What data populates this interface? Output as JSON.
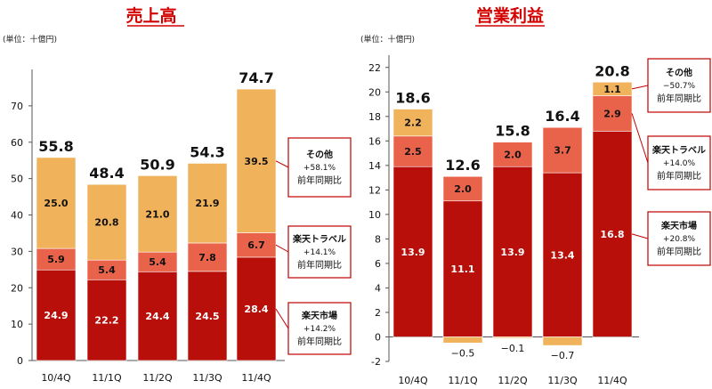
{
  "colors": {
    "ichiba": "#b80f0a",
    "travel": "#e8634a",
    "other": "#f0b35b",
    "title": "#d40000",
    "box_border": "#c00000"
  },
  "chart_data": [
    {
      "type": "bar",
      "stacked": true,
      "title": "売上高",
      "unit": "(単位：十億円)",
      "categories": [
        "10/4Q",
        "11/1Q",
        "11/2Q",
        "11/3Q",
        "11/4Q"
      ],
      "ylim": [
        0,
        80
      ],
      "yticks": [
        0,
        10,
        20,
        30,
        40,
        50,
        60,
        70
      ],
      "grid": false,
      "totals": [
        "55.8",
        "48.4",
        "50.9",
        "54.3",
        "74.7"
      ],
      "series": [
        {
          "key": "ichiba",
          "values": [
            24.9,
            22.2,
            24.4,
            24.5,
            28.4
          ],
          "labels": [
            "24.9",
            "22.2",
            "24.4",
            "24.5",
            "28.4"
          ]
        },
        {
          "key": "travel",
          "values": [
            5.9,
            5.4,
            5.4,
            7.8,
            6.7
          ],
          "labels": [
            "5.9",
            "5.4",
            "5.4",
            "7.8",
            "6.7"
          ]
        },
        {
          "key": "other",
          "values": [
            25.0,
            20.8,
            21.0,
            21.9,
            39.5
          ],
          "labels": [
            "25.0",
            "20.8",
            "21.0",
            "21.9",
            "39.5"
          ]
        }
      ],
      "annotations": [
        {
          "series": "other",
          "name": "その他",
          "change": "+58.1%",
          "sub": "前年同期比"
        },
        {
          "series": "travel",
          "name": "楽天トラベル",
          "change": "+14.1%",
          "sub": "前年同期比"
        },
        {
          "series": "ichiba",
          "name": "楽天市場",
          "change": "+14.2%",
          "sub": "前年同期比"
        }
      ]
    },
    {
      "type": "bar",
      "stacked": true,
      "title": "営業利益",
      "unit": "(単位：十億円)",
      "categories": [
        "10/4Q",
        "11/1Q",
        "11/2Q",
        "11/3Q",
        "11/4Q"
      ],
      "ylim": [
        -2,
        23
      ],
      "yticks": [
        -2,
        0,
        2,
        4,
        6,
        8,
        10,
        12,
        14,
        16,
        18,
        20,
        22
      ],
      "grid": false,
      "totals": [
        "18.6",
        "12.6",
        "15.8",
        "16.4",
        "20.8"
      ],
      "series": [
        {
          "key": "ichiba",
          "values": [
            13.9,
            11.1,
            13.9,
            13.4,
            16.8
          ],
          "labels": [
            "13.9",
            "11.1",
            "13.9",
            "13.4",
            "16.8"
          ]
        },
        {
          "key": "travel",
          "values": [
            2.5,
            2.0,
            2.0,
            3.7,
            2.9
          ],
          "labels": [
            "2.5",
            "2.0",
            "2.0",
            "3.7",
            "2.9"
          ]
        },
        {
          "key": "other",
          "values": [
            2.2,
            -0.5,
            -0.1,
            -0.7,
            1.1
          ],
          "labels": [
            "2.2",
            "−0.5",
            "−0.1",
            "−0.7",
            "1.1"
          ]
        }
      ],
      "annotations": [
        {
          "series": "other",
          "name": "その他",
          "change": "−50.7%",
          "sub": "前年同期比"
        },
        {
          "series": "travel",
          "name": "楽天トラベル",
          "change": "+14.0%",
          "sub": "前年同期比"
        },
        {
          "series": "ichiba",
          "name": "楽天市場",
          "change": "+20.8%",
          "sub": "前年同期比"
        }
      ]
    }
  ]
}
